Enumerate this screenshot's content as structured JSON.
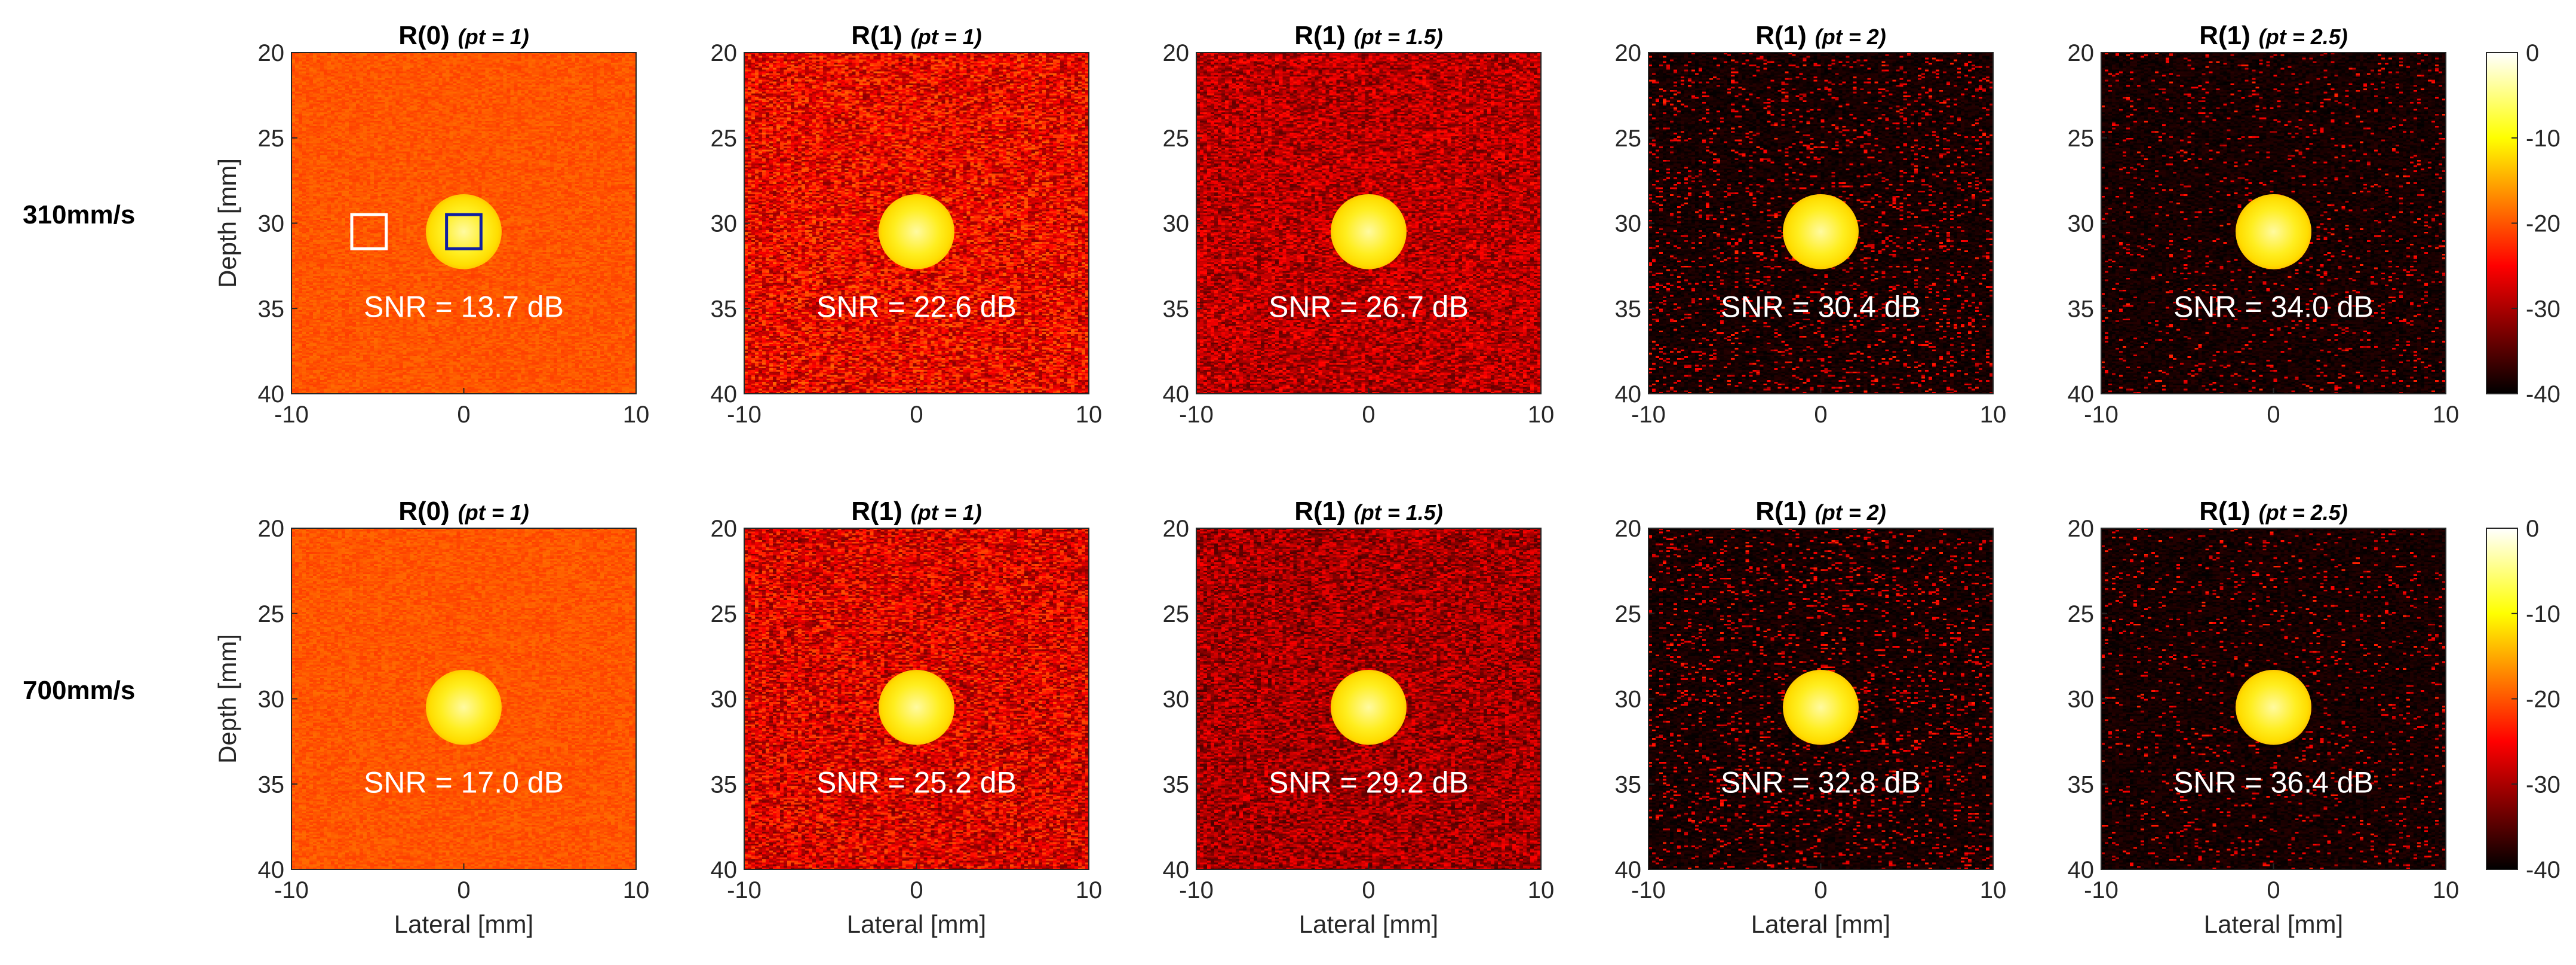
{
  "chart_data": {
    "type": "heatmap",
    "description_units": {
      "x": "Lateral [mm]",
      "y": "Depth [mm]",
      "color": "dB"
    },
    "xlabel": "Lateral [mm]",
    "ylabel": "Depth [mm]",
    "xlim": [
      -10,
      10
    ],
    "ylim": [
      20,
      40
    ],
    "xticks": [
      -10,
      0,
      10
    ],
    "yticks": [
      20,
      25,
      30,
      35,
      40
    ],
    "colorbar": {
      "range": [
        -40,
        0
      ],
      "ticks": [
        0,
        -10,
        -20,
        -30,
        -40
      ],
      "colormap": "hot"
    },
    "target": {
      "center_x_mm": 0,
      "center_depth_mm": 30.5,
      "radius_mm": 2.2
    },
    "roi_boxes": [
      {
        "color": "#ffffff",
        "x_mm": [
          -6.5,
          -4.5
        ],
        "depth_mm": [
          29.5,
          31.5
        ]
      },
      {
        "color": "#1020a0",
        "x_mm": [
          -1.0,
          1.0
        ],
        "depth_mm": [
          29.5,
          31.5
        ]
      }
    ],
    "rows": [
      {
        "label": "310mm/s",
        "panels": [
          {
            "title_main": "R(0)",
            "title_param": "(pt = 1)",
            "pt": 1,
            "order": 0,
            "snr_label": "SNR = 13.7 dB",
            "snr_db": 13.7,
            "show_roi": true
          },
          {
            "title_main": "R(1)",
            "title_param": "(pt = 1)",
            "pt": 1,
            "order": 1,
            "snr_label": "SNR = 22.6 dB",
            "snr_db": 22.6,
            "show_roi": false
          },
          {
            "title_main": "R(1)",
            "title_param": "(pt = 1.5)",
            "pt": 1.5,
            "order": 1,
            "snr_label": "SNR = 26.7 dB",
            "snr_db": 26.7,
            "show_roi": false
          },
          {
            "title_main": "R(1)",
            "title_param": "(pt = 2)",
            "pt": 2,
            "order": 1,
            "snr_label": "SNR = 30.4 dB",
            "snr_db": 30.4,
            "show_roi": false
          },
          {
            "title_main": "R(1)",
            "title_param": "(pt = 2.5)",
            "pt": 2.5,
            "order": 1,
            "snr_label": "SNR = 34.0 dB",
            "snr_db": 34.0,
            "show_roi": false
          }
        ]
      },
      {
        "label": "700mm/s",
        "panels": [
          {
            "title_main": "R(0)",
            "title_param": "(pt = 1)",
            "pt": 1,
            "order": 0,
            "snr_label": "SNR = 17.0 dB",
            "snr_db": 17.0,
            "show_roi": false
          },
          {
            "title_main": "R(1)",
            "title_param": "(pt = 1)",
            "pt": 1,
            "order": 1,
            "snr_label": "SNR = 25.2 dB",
            "snr_db": 25.2,
            "show_roi": false
          },
          {
            "title_main": "R(1)",
            "title_param": "(pt = 1.5)",
            "pt": 1.5,
            "order": 1,
            "snr_label": "SNR = 29.2 dB",
            "snr_db": 29.2,
            "show_roi": false
          },
          {
            "title_main": "R(1)",
            "title_param": "(pt = 2)",
            "pt": 2,
            "order": 1,
            "snr_label": "SNR = 32.8 dB",
            "snr_db": 32.8,
            "show_roi": false
          },
          {
            "title_main": "R(1)",
            "title_param": "(pt = 2.5)",
            "pt": 2.5,
            "order": 1,
            "snr_label": "SNR = 36.4 dB",
            "snr_db": 36.4,
            "show_roi": false
          }
        ]
      }
    ]
  }
}
